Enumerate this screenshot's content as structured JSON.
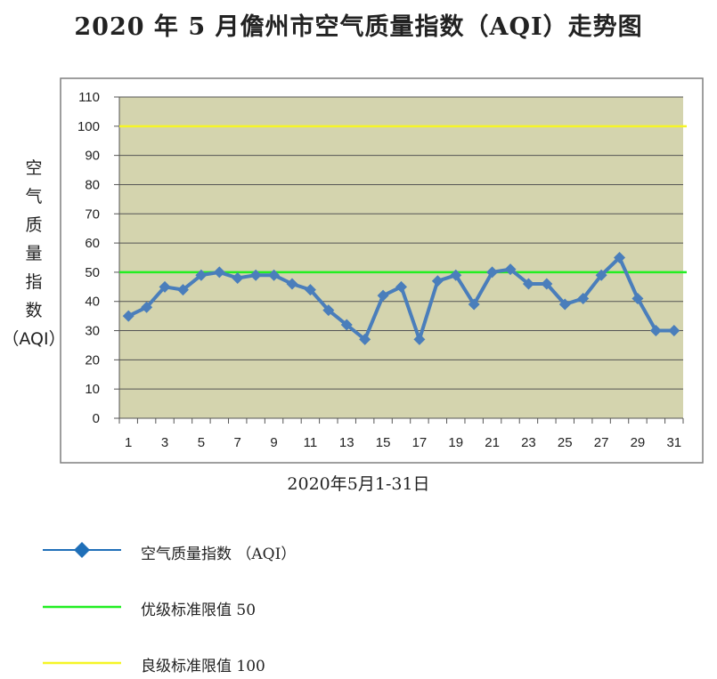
{
  "title": "2020 年 5 月儋州市空气质量指数（AQI）走势图",
  "chart_data": {
    "type": "line",
    "title": "2020 年 5 月儋州市空气质量指数（AQI）走势图",
    "xlabel": "2020年5月1-31日",
    "ylabel_chars": [
      "空",
      "气",
      "质",
      "量",
      "指",
      "数",
      "（AQI）"
    ],
    "ylabel": "空气质量指数（AQI）",
    "ylim": [
      0,
      110
    ],
    "yticks": [
      0,
      10,
      20,
      30,
      40,
      50,
      60,
      70,
      80,
      90,
      100,
      110
    ],
    "xticks": [
      1,
      3,
      5,
      7,
      9,
      11,
      13,
      15,
      17,
      19,
      21,
      23,
      25,
      27,
      29,
      31
    ],
    "x": [
      1,
      2,
      3,
      4,
      5,
      6,
      7,
      8,
      9,
      10,
      11,
      12,
      13,
      14,
      15,
      16,
      17,
      18,
      19,
      20,
      21,
      22,
      23,
      24,
      25,
      26,
      27,
      28,
      29,
      30,
      31
    ],
    "grid": true,
    "plot_background": "#d4d4ae",
    "series": [
      {
        "name": "空气质量指数 （AQI）",
        "color": "#4a7ebb",
        "marker": "diamond",
        "values": [
          35,
          38,
          45,
          44,
          49,
          50,
          48,
          49,
          49,
          46,
          44,
          37,
          32,
          27,
          42,
          45,
          27,
          47,
          49,
          39,
          50,
          51,
          46,
          46,
          39,
          41,
          49,
          55,
          41,
          30,
          30
        ]
      }
    ],
    "reference_lines": [
      {
        "name": "优级标准限值  50",
        "value": 50,
        "color": "#22ee22"
      },
      {
        "name": "良级标准限值  100",
        "value": 100,
        "color": "#f5f526"
      }
    ],
    "legend_placement": "bottom"
  }
}
